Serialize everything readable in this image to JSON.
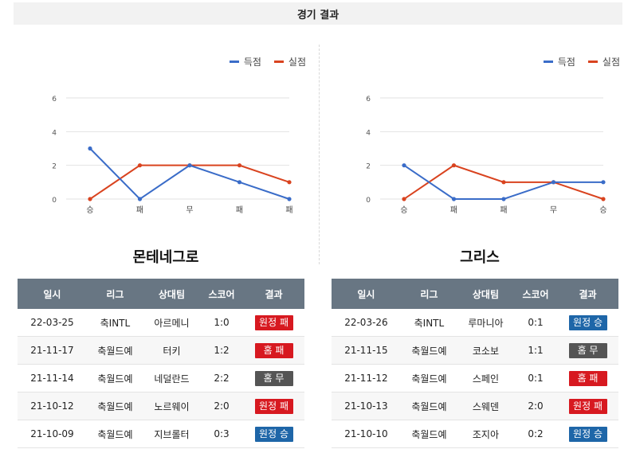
{
  "header": {
    "title": "경기 결과"
  },
  "legend": {
    "scored": "득점",
    "conceded": "실점"
  },
  "colors": {
    "scored": "#3a6cc8",
    "conceded": "#d9431f",
    "win": "#1e66a8",
    "loss": "#d71920",
    "draw": "#555555"
  },
  "table_headers": [
    "일시",
    "리그",
    "상대팀",
    "스코어",
    "결과"
  ],
  "teams": [
    {
      "name": "몬테네그로",
      "chart_data": {
        "type": "line",
        "categories": [
          "승",
          "패",
          "무",
          "패",
          "패"
        ],
        "series": [
          {
            "name": "득점",
            "values": [
              3,
              0,
              2,
              1,
              0
            ]
          },
          {
            "name": "실점",
            "values": [
              0,
              2,
              2,
              2,
              1
            ]
          }
        ],
        "yticks": [
          "0",
          "2",
          "4",
          "6"
        ],
        "ylim": [
          0,
          6
        ],
        "legend": "top-right",
        "grid": true
      },
      "matches": [
        {
          "date": "22-03-25",
          "league": "축INTL",
          "opponent": "아르메니",
          "score": "1:0",
          "result": "원정 패",
          "type": "loss"
        },
        {
          "date": "21-11-17",
          "league": "축월드예",
          "opponent": "터키",
          "score": "1:2",
          "result": "홈 패",
          "type": "loss"
        },
        {
          "date": "21-11-14",
          "league": "축월드예",
          "opponent": "네덜란드",
          "score": "2:2",
          "result": "홈 무",
          "type": "draw"
        },
        {
          "date": "21-10-12",
          "league": "축월드예",
          "opponent": "노르웨이",
          "score": "2:0",
          "result": "원정 패",
          "type": "loss"
        },
        {
          "date": "21-10-09",
          "league": "축월드예",
          "opponent": "지브롤터",
          "score": "0:3",
          "result": "원정 승",
          "type": "win"
        }
      ]
    },
    {
      "name": "그리스",
      "chart_data": {
        "type": "line",
        "categories": [
          "승",
          "패",
          "패",
          "무",
          "승"
        ],
        "series": [
          {
            "name": "득점",
            "values": [
              2,
              0,
              0,
              1,
              1
            ]
          },
          {
            "name": "실점",
            "values": [
              0,
              2,
              1,
              1,
              0
            ]
          }
        ],
        "yticks": [
          "0",
          "2",
          "4",
          "6"
        ],
        "ylim": [
          0,
          6
        ],
        "legend": "top-right",
        "grid": true
      },
      "matches": [
        {
          "date": "22-03-26",
          "league": "축INTL",
          "opponent": "루마니아",
          "score": "0:1",
          "result": "원정 승",
          "type": "win"
        },
        {
          "date": "21-11-15",
          "league": "축월드예",
          "opponent": "코소보",
          "score": "1:1",
          "result": "홈 무",
          "type": "draw"
        },
        {
          "date": "21-11-12",
          "league": "축월드예",
          "opponent": "스페인",
          "score": "0:1",
          "result": "홈 패",
          "type": "loss"
        },
        {
          "date": "21-10-13",
          "league": "축월드예",
          "opponent": "스웨덴",
          "score": "2:0",
          "result": "원정 패",
          "type": "loss"
        },
        {
          "date": "21-10-10",
          "league": "축월드예",
          "opponent": "조지아",
          "score": "0:2",
          "result": "원정 승",
          "type": "win"
        }
      ]
    }
  ]
}
